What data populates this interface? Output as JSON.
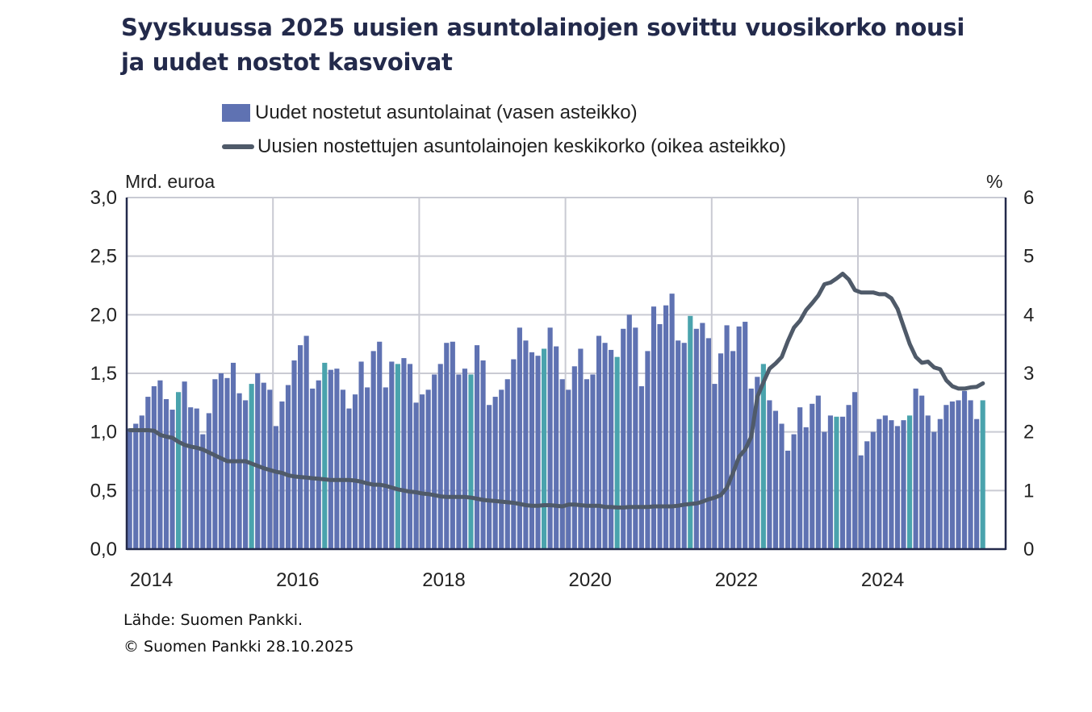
{
  "title_line1": "Syyskuussa 2025 uusien asuntolainojen sovittu vuosikorko nousi",
  "title_line2": "ja uudet nostot kasvoivat",
  "source": "Lähde: Suomen Pankki.",
  "copyright": "© Suomen Pankki 28.10.2025",
  "colors": {
    "bars": "#5f72b2",
    "highlight_bars": "#4aa3ad",
    "line": "#4f5a69",
    "title": "#232a4b"
  },
  "chart_data": {
    "type": "bar+line",
    "title": "Syyskuussa 2025 uusien asuntolainojen sovittu vuosikorko nousi ja uudet nostot kasvoivat",
    "left_axis_label": "Mrd. euroa",
    "right_axis_label": "%",
    "ylim_left": [
      0,
      3
    ],
    "ylim_right": [
      0,
      6
    ],
    "left_ticks": [
      "0,0",
      "0,5",
      "1,0",
      "1,5",
      "2,0",
      "2,5",
      "3,0"
    ],
    "right_ticks": [
      "0",
      "1",
      "2",
      "3",
      "4",
      "5",
      "6"
    ],
    "x_ticks": [
      "2014",
      "2016",
      "2018",
      "2020",
      "2022",
      "2024"
    ],
    "grid": true,
    "legend_position": "top",
    "x_start": "2014-01",
    "x_end": "2025-09",
    "frequency": "monthly",
    "highlighted_month": "September",
    "series": [
      {
        "name": "Uudet nostetut asuntolainat (vasen asteikko)",
        "type": "bar",
        "axis": "left",
        "values": [
          1.03,
          1.07,
          1.14,
          1.3,
          1.39,
          1.44,
          1.28,
          1.19,
          1.34,
          1.43,
          1.21,
          1.2,
          0.98,
          1.16,
          1.45,
          1.5,
          1.46,
          1.59,
          1.33,
          1.27,
          1.41,
          1.5,
          1.42,
          1.36,
          1.05,
          1.26,
          1.4,
          1.61,
          1.74,
          1.82,
          1.37,
          1.44,
          1.59,
          1.53,
          1.54,
          1.36,
          1.2,
          1.32,
          1.6,
          1.38,
          1.69,
          1.77,
          1.38,
          1.6,
          1.58,
          1.63,
          1.58,
          1.25,
          1.32,
          1.36,
          1.49,
          1.58,
          1.76,
          1.77,
          1.49,
          1.54,
          1.49,
          1.74,
          1.61,
          1.23,
          1.3,
          1.36,
          1.45,
          1.62,
          1.89,
          1.78,
          1.68,
          1.65,
          1.71,
          1.89,
          1.73,
          1.45,
          1.36,
          1.56,
          1.71,
          1.45,
          1.49,
          1.82,
          1.76,
          1.7,
          1.64,
          1.88,
          2.0,
          1.89,
          1.39,
          1.69,
          2.07,
          1.92,
          2.08,
          2.18,
          1.78,
          1.76,
          1.99,
          1.88,
          1.93,
          1.8,
          1.41,
          1.67,
          1.91,
          1.69,
          1.9,
          1.94,
          1.37,
          1.47,
          1.58,
          1.27,
          1.18,
          1.07,
          0.84,
          0.98,
          1.21,
          1.04,
          1.24,
          1.31,
          1.0,
          1.14,
          1.13,
          1.13,
          1.23,
          1.34,
          0.8,
          0.92,
          1.0,
          1.11,
          1.14,
          1.1,
          1.05,
          1.1,
          1.14,
          1.37,
          1.31,
          1.14,
          1.0,
          1.11,
          1.23,
          1.26,
          1.27,
          1.35,
          1.27,
          1.11,
          1.27
        ]
      },
      {
        "name": "Uusien nostettujen asuntolainojen keskikorko (oikea asteikko)",
        "type": "line",
        "axis": "right",
        "values": [
          2.03,
          2.03,
          2.03,
          2.03,
          2.02,
          1.95,
          1.92,
          1.9,
          1.83,
          1.78,
          1.75,
          1.73,
          1.7,
          1.65,
          1.6,
          1.55,
          1.5,
          1.5,
          1.5,
          1.5,
          1.46,
          1.42,
          1.38,
          1.35,
          1.32,
          1.3,
          1.26,
          1.24,
          1.23,
          1.22,
          1.21,
          1.2,
          1.19,
          1.18,
          1.18,
          1.18,
          1.18,
          1.17,
          1.15,
          1.12,
          1.1,
          1.1,
          1.08,
          1.05,
          1.02,
          1.0,
          0.98,
          0.97,
          0.95,
          0.94,
          0.92,
          0.9,
          0.89,
          0.89,
          0.89,
          0.89,
          0.88,
          0.86,
          0.84,
          0.83,
          0.82,
          0.81,
          0.8,
          0.79,
          0.77,
          0.75,
          0.74,
          0.74,
          0.75,
          0.75,
          0.74,
          0.73,
          0.76,
          0.76,
          0.75,
          0.74,
          0.74,
          0.74,
          0.72,
          0.72,
          0.71,
          0.71,
          0.72,
          0.72,
          0.72,
          0.72,
          0.73,
          0.73,
          0.73,
          0.73,
          0.74,
          0.76,
          0.77,
          0.78,
          0.81,
          0.85,
          0.88,
          0.92,
          1.05,
          1.3,
          1.58,
          1.7,
          1.92,
          2.6,
          2.85,
          3.08,
          3.17,
          3.28,
          3.55,
          3.78,
          3.9,
          4.08,
          4.2,
          4.33,
          4.52,
          4.55,
          4.62,
          4.7,
          4.6,
          4.42,
          4.38,
          4.38,
          4.38,
          4.35,
          4.35,
          4.28,
          4.1,
          3.8,
          3.5,
          3.28,
          3.18,
          3.2,
          3.1,
          3.07,
          2.88,
          2.78,
          2.74,
          2.74,
          2.76,
          2.77,
          2.83
        ]
      }
    ]
  }
}
